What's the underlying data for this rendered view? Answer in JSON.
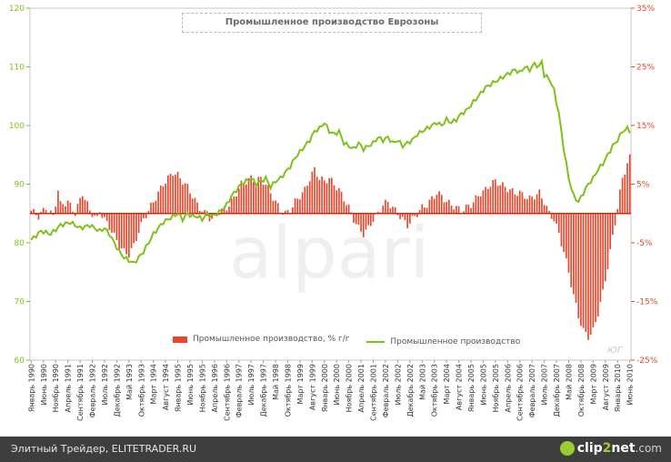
{
  "chart_data": {
    "type": "bar+line",
    "title": "Промышленное производство Еврозоны",
    "left_axis": {
      "ticks": [
        "60",
        "70",
        "80",
        "90",
        "100",
        "110",
        "120"
      ],
      "range": [
        60,
        120
      ]
    },
    "right_axis": {
      "ticks": [
        "-25%",
        "-15%",
        "-5%",
        "5%",
        "15%",
        "25%",
        "35%"
      ],
      "range": [
        -25,
        35
      ]
    },
    "x_labels": [
      "Январь 1990",
      "Июнь 1990",
      "Ноябрь 1990",
      "Апрель 1991",
      "Сентябрь 1991",
      "Февраль 1992",
      "Июль 1992",
      "Декабрь 1992",
      "Май 1993",
      "Октябрь 1993",
      "Март 1994",
      "Август 1994",
      "Январь 1995",
      "Июнь 1995",
      "Ноябрь 1995",
      "Апрель 1996",
      "Сентябрь 1996",
      "Февраль 1997",
      "Июль 1997",
      "Декабрь 1997",
      "Май 1998",
      "Октябрь 1998",
      "Март 1999",
      "Август 1999",
      "Январь 2000",
      "Июнь 2000",
      "Ноябрь 2000",
      "Апрель 2001",
      "Сентябрь 2001",
      "Февраль 2002",
      "Июль 2002",
      "Декабрь 2002",
      "Май 2003",
      "Октябрь 2003",
      "Март 2004",
      "Август 2004",
      "Январь 2005",
      "Июнь 2005",
      "Ноябрь 2005",
      "Апрель 2006",
      "Сентябрь 2006",
      "Февраль 2007",
      "Июль 2007",
      "Декабрь 2007",
      "Май 2008",
      "Октябрь 2008",
      "Март 2009",
      "Август 2009",
      "Январь 2010",
      "Июнь 2010"
    ],
    "series": [
      {
        "name": "Промышленное производство,  % г/г",
        "type": "bar",
        "axis": "right",
        "color": "#e8452a",
        "keypoints": [
          [
            0,
            0.5
          ],
          [
            3,
            -0.5
          ],
          [
            6,
            1.0
          ],
          [
            9,
            -0.5
          ],
          [
            11,
            4.0
          ],
          [
            12,
            1.5
          ],
          [
            15,
            2.0
          ],
          [
            18,
            0.0
          ],
          [
            21,
            3.5
          ],
          [
            24,
            0.5
          ],
          [
            27,
            -1.0
          ],
          [
            28,
            0.5
          ],
          [
            30,
            -1.0
          ],
          [
            33,
            -3.0
          ],
          [
            36,
            -5.5
          ],
          [
            38,
            -6.5
          ],
          [
            40,
            -7.0
          ],
          [
            42,
            -5.5
          ],
          [
            44,
            -3.0
          ],
          [
            46,
            -1.0
          ],
          [
            48,
            0.5
          ],
          [
            50,
            2.0
          ],
          [
            52,
            3.5
          ],
          [
            54,
            5.0
          ],
          [
            56,
            6.0
          ],
          [
            58,
            7.0
          ],
          [
            60,
            6.5
          ],
          [
            62,
            5.5
          ],
          [
            64,
            4.5
          ],
          [
            66,
            3.0
          ],
          [
            68,
            1.5
          ],
          [
            70,
            0.5
          ],
          [
            72,
            -0.5
          ],
          [
            74,
            -1.0
          ],
          [
            76,
            0.0
          ],
          [
            78,
            0.5
          ],
          [
            80,
            1.0
          ],
          [
            82,
            2.0
          ],
          [
            84,
            3.5
          ],
          [
            86,
            5.0
          ],
          [
            88,
            5.5
          ],
          [
            90,
            6.0
          ],
          [
            92,
            5.5
          ],
          [
            94,
            6.0
          ],
          [
            96,
            5.0
          ],
          [
            98,
            3.5
          ],
          [
            100,
            2.0
          ],
          [
            102,
            0.5
          ],
          [
            104,
            0.0
          ],
          [
            106,
            0.5
          ],
          [
            108,
            2.0
          ],
          [
            110,
            3.0
          ],
          [
            112,
            4.0
          ],
          [
            114,
            6.0
          ],
          [
            116,
            7.5
          ],
          [
            118,
            6.0
          ],
          [
            120,
            5.5
          ],
          [
            122,
            6.0
          ],
          [
            124,
            5.0
          ],
          [
            126,
            4.0
          ],
          [
            128,
            2.5
          ],
          [
            130,
            1.0
          ],
          [
            132,
            -1.0
          ],
          [
            134,
            -2.5
          ],
          [
            136,
            -3.5
          ],
          [
            138,
            -2.5
          ],
          [
            140,
            -1.0
          ],
          [
            142,
            0.0
          ],
          [
            144,
            1.5
          ],
          [
            146,
            2.0
          ],
          [
            148,
            1.0
          ],
          [
            150,
            0.0
          ],
          [
            152,
            -1.0
          ],
          [
            154,
            -2.0
          ],
          [
            156,
            -1.0
          ],
          [
            158,
            0.0
          ],
          [
            160,
            1.0
          ],
          [
            162,
            1.5
          ],
          [
            164,
            2.5
          ],
          [
            166,
            3.5
          ],
          [
            168,
            3.0
          ],
          [
            170,
            2.0
          ],
          [
            172,
            1.5
          ],
          [
            174,
            1.0
          ],
          [
            176,
            0.5
          ],
          [
            178,
            1.0
          ],
          [
            180,
            1.5
          ],
          [
            182,
            2.5
          ],
          [
            184,
            3.5
          ],
          [
            186,
            4.0
          ],
          [
            188,
            5.0
          ],
          [
            190,
            5.5
          ],
          [
            192,
            5.0
          ],
          [
            194,
            4.5
          ],
          [
            196,
            4.0
          ],
          [
            198,
            3.5
          ],
          [
            200,
            3.5
          ],
          [
            202,
            3.0
          ],
          [
            204,
            2.5
          ],
          [
            206,
            3.0
          ],
          [
            208,
            3.5
          ],
          [
            210,
            2.0
          ],
          [
            212,
            0.0
          ],
          [
            214,
            -1.0
          ],
          [
            216,
            -3.5
          ],
          [
            218,
            -6.5
          ],
          [
            220,
            -10.0
          ],
          [
            222,
            -14.0
          ],
          [
            224,
            -17.5
          ],
          [
            226,
            -20.0
          ],
          [
            228,
            -21.0
          ],
          [
            230,
            -20.0
          ],
          [
            232,
            -17.0
          ],
          [
            234,
            -13.5
          ],
          [
            236,
            -9.0
          ],
          [
            238,
            -4.0
          ],
          [
            240,
            1.0
          ],
          [
            242,
            6.0
          ],
          [
            244,
            8.5
          ],
          [
            245,
            9.5
          ]
        ]
      },
      {
        "name": "Промышленное производство",
        "type": "line",
        "axis": "left",
        "color": "#7ec11a",
        "keypoints": [
          [
            0,
            80.5
          ],
          [
            4,
            82.0
          ],
          [
            8,
            81.5
          ],
          [
            12,
            83.0
          ],
          [
            16,
            83.5
          ],
          [
            20,
            82.5
          ],
          [
            24,
            83.0
          ],
          [
            28,
            82.0
          ],
          [
            30,
            82.5
          ],
          [
            32,
            81.5
          ],
          [
            34,
            80.0
          ],
          [
            36,
            78.5
          ],
          [
            38,
            77.5
          ],
          [
            40,
            77.0
          ],
          [
            42,
            76.5
          ],
          [
            44,
            77.5
          ],
          [
            46,
            78.5
          ],
          [
            48,
            80.0
          ],
          [
            50,
            81.5
          ],
          [
            52,
            82.5
          ],
          [
            54,
            83.5
          ],
          [
            56,
            84.0
          ],
          [
            58,
            84.5
          ],
          [
            60,
            85.0
          ],
          [
            62,
            84.0
          ],
          [
            64,
            85.0
          ],
          [
            66,
            84.5
          ],
          [
            68,
            84.5
          ],
          [
            70,
            84.0
          ],
          [
            72,
            85.0
          ],
          [
            74,
            84.5
          ],
          [
            76,
            85.0
          ],
          [
            78,
            85.5
          ],
          [
            80,
            86.5
          ],
          [
            82,
            88.0
          ],
          [
            84,
            89.0
          ],
          [
            86,
            90.0
          ],
          [
            88,
            90.5
          ],
          [
            90,
            91.0
          ],
          [
            92,
            90.0
          ],
          [
            94,
            90.5
          ],
          [
            96,
            91.0
          ],
          [
            98,
            89.5
          ],
          [
            100,
            90.5
          ],
          [
            102,
            91.0
          ],
          [
            104,
            92.0
          ],
          [
            106,
            93.0
          ],
          [
            108,
            94.5
          ],
          [
            110,
            95.5
          ],
          [
            112,
            96.5
          ],
          [
            114,
            97.5
          ],
          [
            116,
            99.0
          ],
          [
            118,
            99.5
          ],
          [
            120,
            100.5
          ],
          [
            122,
            99.0
          ],
          [
            124,
            98.5
          ],
          [
            126,
            99.0
          ],
          [
            128,
            97.0
          ],
          [
            130,
            96.5
          ],
          [
            132,
            96.0
          ],
          [
            134,
            97.0
          ],
          [
            136,
            96.0
          ],
          [
            138,
            96.5
          ],
          [
            140,
            97.0
          ],
          [
            142,
            98.0
          ],
          [
            144,
            97.5
          ],
          [
            146,
            98.0
          ],
          [
            148,
            97.0
          ],
          [
            150,
            97.5
          ],
          [
            152,
            96.5
          ],
          [
            154,
            97.0
          ],
          [
            156,
            97.5
          ],
          [
            158,
            98.5
          ],
          [
            160,
            99.0
          ],
          [
            162,
            99.5
          ],
          [
            164,
            100.0
          ],
          [
            166,
            100.5
          ],
          [
            168,
            100.0
          ],
          [
            170,
            101.0
          ],
          [
            172,
            100.5
          ],
          [
            174,
            101.0
          ],
          [
            176,
            102.0
          ],
          [
            178,
            102.5
          ],
          [
            180,
            103.5
          ],
          [
            182,
            104.5
          ],
          [
            184,
            105.5
          ],
          [
            186,
            106.5
          ],
          [
            188,
            107.0
          ],
          [
            190,
            107.5
          ],
          [
            192,
            108.0
          ],
          [
            194,
            108.5
          ],
          [
            196,
            109.0
          ],
          [
            198,
            109.5
          ],
          [
            200,
            109.0
          ],
          [
            202,
            110.0
          ],
          [
            204,
            109.5
          ],
          [
            206,
            110.5
          ],
          [
            208,
            110.0
          ],
          [
            209,
            111.0
          ],
          [
            210,
            108.5
          ],
          [
            212,
            108.0
          ],
          [
            214,
            106.0
          ],
          [
            216,
            102.0
          ],
          [
            218,
            96.0
          ],
          [
            220,
            91.0
          ],
          [
            222,
            88.0
          ],
          [
            224,
            87.0
          ],
          [
            226,
            88.5
          ],
          [
            228,
            90.0
          ],
          [
            230,
            91.0
          ],
          [
            232,
            92.5
          ],
          [
            234,
            93.5
          ],
          [
            236,
            95.0
          ],
          [
            238,
            96.5
          ],
          [
            240,
            97.5
          ],
          [
            242,
            99.0
          ],
          [
            244,
            99.5
          ],
          [
            245,
            99.0
          ]
        ]
      }
    ],
    "months": 246,
    "legend_position": "bottom-center",
    "grid": false
  },
  "corner_note": "ЮГ",
  "footer": {
    "caption": "Элитный Трейдер, ELITETRADER.RU",
    "logo_clip": "clip",
    "logo_num": "2",
    "logo_net": "net",
    "logo_tail": ".com"
  }
}
